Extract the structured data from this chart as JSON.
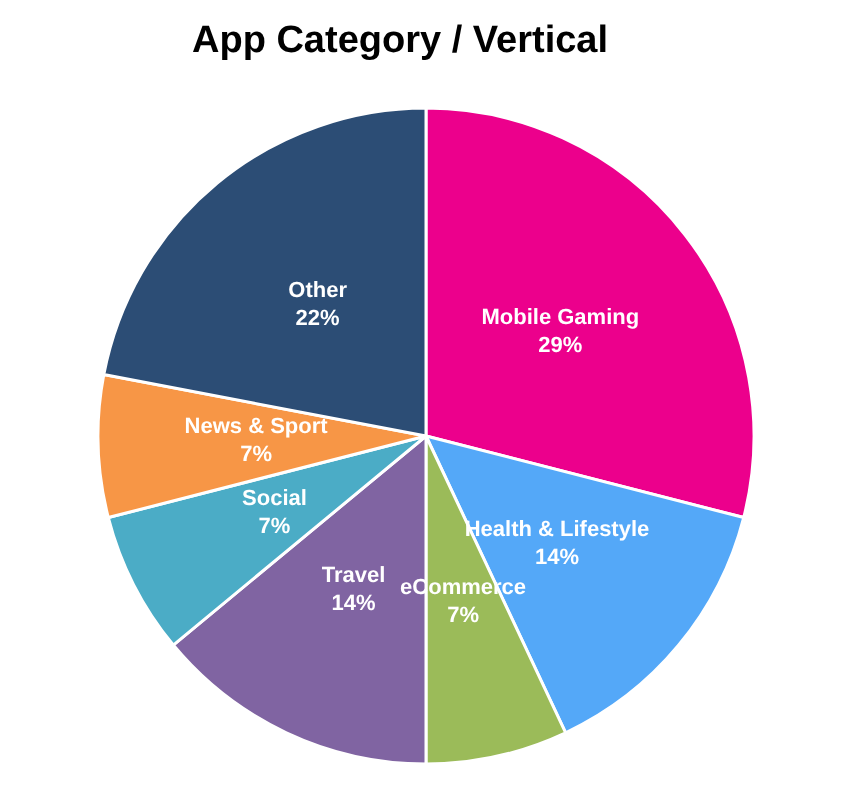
{
  "chart_data": {
    "type": "pie",
    "title": "App Category / Vertical",
    "categories": [
      "Mobile Gaming",
      "Health & Lifestyle",
      "eCommerce",
      "Travel",
      "Social",
      "News & Sport",
      "Other"
    ],
    "values": [
      29,
      14,
      7,
      14,
      7,
      7,
      22
    ],
    "value_labels": [
      "29%",
      "14%",
      "7%",
      "14%",
      "7%",
      "7%",
      "22%"
    ],
    "colors": [
      "#ec008c",
      "#54a8f8",
      "#9bbb59",
      "#8064a2",
      "#4bacc6",
      "#f79646",
      "#2c4d75"
    ],
    "legend": false
  }
}
